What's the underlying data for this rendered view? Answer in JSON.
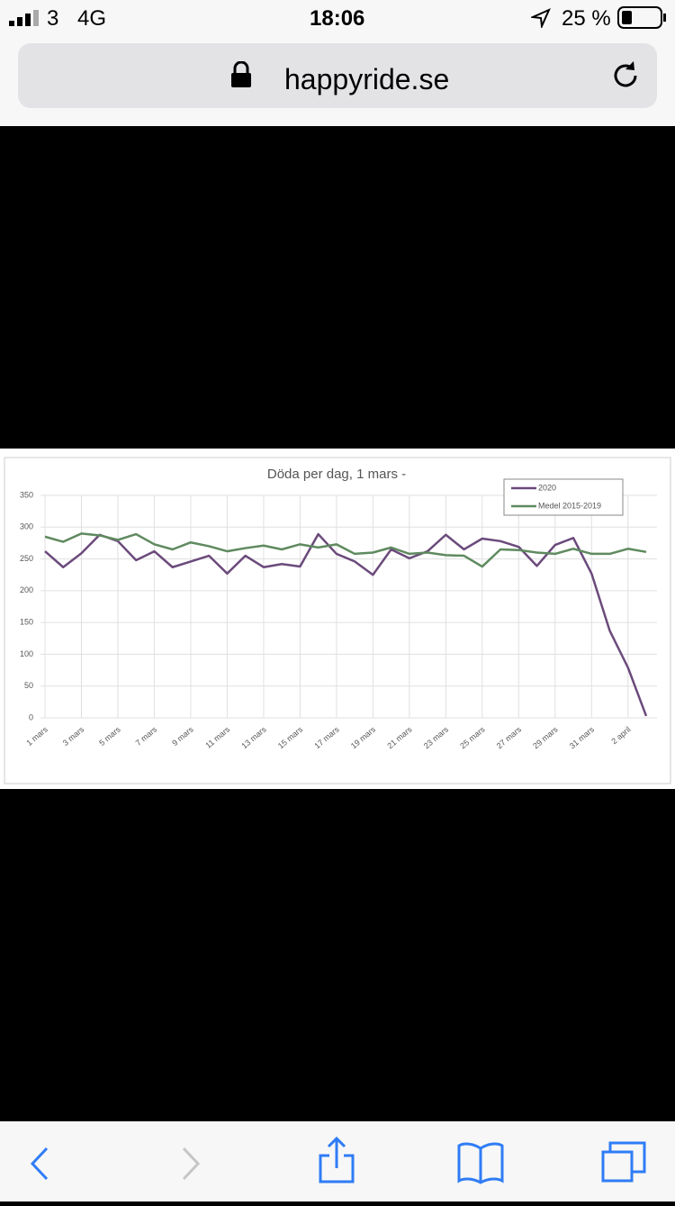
{
  "status_bar": {
    "carrier": "3",
    "network": "4G",
    "time": "18:06",
    "battery": "25 %"
  },
  "browser": {
    "url": "happyride.se"
  },
  "chart_data": {
    "type": "line",
    "title": "Döda per dag, 1 mars -",
    "categories": [
      "1 mars",
      null,
      "3 mars",
      null,
      "5 mars",
      null,
      "7 mars",
      null,
      "9 mars",
      null,
      "11 mars",
      null,
      "13 mars",
      null,
      "15 mars",
      null,
      "17 mars",
      null,
      "19 mars",
      null,
      "21 mars",
      null,
      "23 mars",
      null,
      "25 mars",
      null,
      "27 mars",
      null,
      "29 mars",
      null,
      "31 mars",
      null,
      "2 april",
      null
    ],
    "series": [
      {
        "name": "2020",
        "color": "#6b4a7b",
        "values": [
          262,
          237,
          259,
          288,
          278,
          248,
          262,
          237,
          246,
          255,
          227,
          255,
          237,
          242,
          238,
          289,
          258,
          246,
          225,
          265,
          251,
          262,
          288,
          265,
          282,
          278,
          269,
          239,
          272,
          283,
          227,
          137,
          79,
          3
        ]
      },
      {
        "name": "Medel 2015-2019",
        "color": "#5f8a5f",
        "values": [
          285,
          277,
          290,
          287,
          280,
          289,
          273,
          265,
          276,
          270,
          262,
          267,
          271,
          265,
          273,
          268,
          273,
          258,
          260,
          268,
          258,
          260,
          256,
          255,
          238,
          265,
          264,
          260,
          258,
          266,
          258,
          258,
          266,
          261
        ]
      }
    ],
    "ylim": [
      0,
      350
    ],
    "yticks": [
      0,
      50,
      100,
      150,
      200,
      250,
      300,
      350
    ],
    "grid": true,
    "legend": "top-right"
  }
}
